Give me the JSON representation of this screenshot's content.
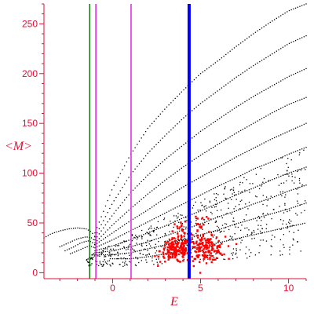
{
  "chart_data": {
    "type": "scatter",
    "xlabel": "E",
    "ylabel": "<M>",
    "xlim": [
      -3.9,
      11.0
    ],
    "ylim": [
      -6,
      270
    ],
    "grid": false,
    "legend": "",
    "x_ticks": [
      0,
      5,
      10
    ],
    "y_ticks": [
      0,
      50,
      100,
      150,
      200,
      250
    ],
    "axis_color": "#dd1133",
    "vertical_lines": [
      {
        "x": -1.3,
        "color": "#117711",
        "width": 1.5
      },
      {
        "x": -0.95,
        "color": "#dd22dd",
        "width": 1.5
      },
      {
        "x": 1.05,
        "color": "#dd22dd",
        "width": 1.5
      },
      {
        "x": 4.35,
        "color": "#0000ff",
        "width": 4
      }
    ],
    "series": [
      {
        "color": "#000000",
        "marker_size": 1.3,
        "curves": [
          {
            "x": [
              -1.0,
              0.0,
              1.0,
              2.0,
              3.0,
              4.0,
              5.0,
              6.0,
              7.0,
              8.0,
              9.0,
              10.0,
              11.0
            ],
            "y": [
              40,
              85,
              118,
              145,
              165,
              183,
              200,
              213,
              227,
              240,
              252,
              263,
              270
            ]
          },
          {
            "x": [
              -1.0,
              0.0,
              1.0,
              2.0,
              3.0,
              4.0,
              5.0,
              6.0,
              7.0,
              8.0,
              9.0,
              10.0,
              11.0
            ],
            "y": [
              36,
              70,
              98,
              120,
              138,
              155,
              170,
              183,
              196,
              208,
              219,
              230,
              238
            ]
          },
          {
            "x": [
              -1.0,
              0.0,
              1.0,
              2.0,
              3.0,
              4.0,
              5.0,
              6.0,
              7.0,
              8.0,
              9.0,
              10.0,
              11.0
            ],
            "y": [
              33,
              58,
              80,
              98,
              114,
              128,
              142,
              154,
              166,
              177,
              187,
              197,
              205
            ]
          },
          {
            "x": [
              -1.0,
              0.0,
              1.0,
              2.0,
              3.0,
              4.0,
              5.0,
              6.0,
              7.0,
              8.0,
              9.0,
              10.0,
              11.0
            ],
            "y": [
              30,
              48,
              64,
              79,
              93,
              106,
              118,
              129,
              140,
              150,
              160,
              169,
              176
            ]
          },
          {
            "x": [
              -1.0,
              0.0,
              1.0,
              2.0,
              3.0,
              4.0,
              5.0,
              6.0,
              7.0,
              8.0,
              9.0,
              10.0,
              11.0
            ],
            "y": [
              28,
              40,
              52,
              63,
              75,
              86,
              96,
              106,
              116,
              125,
              134,
              142,
              150
            ]
          },
          {
            "x": [
              -1.0,
              0.0,
              1.0,
              2.0,
              3.0,
              4.0,
              5.0,
              6.0,
              7.0,
              8.0,
              9.0,
              10.0,
              11.0
            ],
            "y": [
              25,
              33,
              42,
              51,
              60,
              69,
              78,
              87,
              95,
              104,
              111,
              119,
              126
            ]
          },
          {
            "x": [
              -1.0,
              0.0,
              1.0,
              2.0,
              3.0,
              4.0,
              5.0,
              6.0,
              7.0,
              8.0,
              9.0,
              10.0,
              11.0
            ],
            "y": [
              22,
              27,
              33,
              40,
              47,
              55,
              62,
              70,
              78,
              85,
              93,
              100,
              106
            ]
          },
          {
            "x": [
              -1.0,
              0.0,
              1.0,
              2.0,
              3.0,
              4.0,
              5.0,
              6.0,
              7.0,
              8.0,
              9.0,
              10.0,
              11.0
            ],
            "y": [
              20,
              22,
              26,
              31,
              37,
              43,
              49,
              56,
              62,
              69,
              75,
              82,
              88
            ]
          },
          {
            "x": [
              -1.0,
              0.0,
              1.0,
              2.0,
              3.0,
              4.0,
              5.0,
              6.0,
              7.0,
              8.0,
              9.0,
              10.0,
              11.0
            ],
            "y": [
              18,
              18,
              20,
              24,
              28,
              33,
              38,
              43,
              49,
              54,
              59,
              64,
              70
            ]
          },
          {
            "x": [
              0.0,
              1.0,
              2.0,
              3.0,
              4.0,
              5.0,
              6.0,
              7.0,
              8.0,
              9.0,
              10.0,
              11.0
            ],
            "y": [
              14,
              14,
              16,
              19,
              22,
              26,
              30,
              34,
              38,
              42,
              46,
              50
            ]
          },
          {
            "x": [
              -3.9,
              -3.5,
              -3.0,
              -2.5,
              -2.0,
              -1.5,
              -1.2,
              -1.0
            ],
            "y": [
              35,
              39,
              42,
              44,
              45,
              44,
              41,
              36
            ]
          },
          {
            "x": [
              -3.0,
              -2.5,
              -2.0,
              -1.5,
              -1.2,
              -1.0
            ],
            "y": [
              26,
              30,
              34,
              36,
              35,
              32
            ]
          },
          {
            "x": [
              -2.7,
              -2.2,
              -1.8,
              -1.4,
              -1.2,
              -1.0
            ],
            "y": [
              22,
              26,
              30,
              32,
              31,
              28
            ]
          },
          {
            "x": [
              -2.4,
              -2.0,
              -1.6,
              -1.3,
              -1.0
            ],
            "y": [
              19,
              22,
              25,
              27,
              25
            ]
          }
        ]
      },
      {
        "color": "#ff0000",
        "marker_size": 2.4,
        "clusters": [
          {
            "cx": 3.6,
            "cy": 22,
            "sx": 0.45,
            "sy": 6,
            "n": 160
          },
          {
            "cx": 5.3,
            "cy": 24,
            "sx": 0.55,
            "sy": 6,
            "n": 150
          },
          {
            "cx": 4.0,
            "cy": 38,
            "sx": 0.3,
            "sy": 10,
            "n": 30
          },
          {
            "cx": 5.0,
            "cy": 45,
            "sx": 0.3,
            "sy": 12,
            "n": 25
          }
        ]
      }
    ]
  }
}
